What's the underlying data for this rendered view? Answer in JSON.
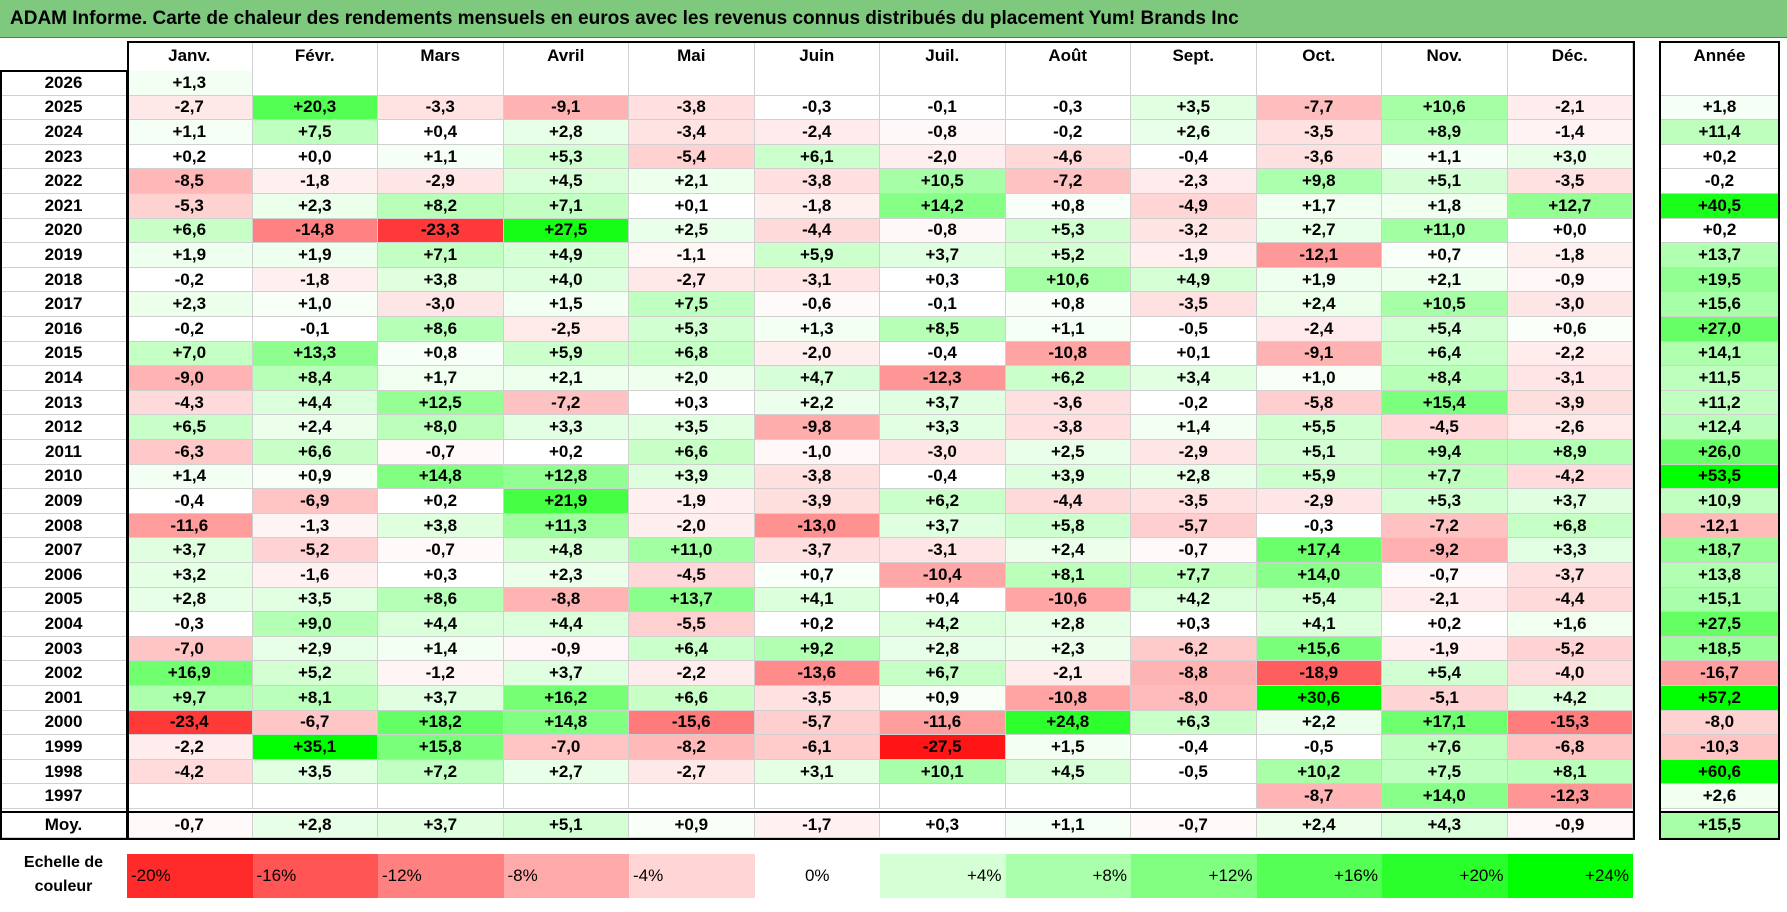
{
  "title": "ADAM Informe. Carte de chaleur des rendements mensuels en euros avec les revenus connus distribués du placement Yum! Brands Inc",
  "colors": {
    "neg_max": "#ff0000",
    "pos_max": "#00ff00",
    "neutral": "#ffffff",
    "title_bg": "#7fc97f"
  },
  "chart_data": {
    "type": "heatmap",
    "title": "ADAM Informe. Carte de chaleur des rendements mensuels en euros avec les revenus connus distribués du placement Yum! Brands Inc",
    "months": [
      "Janv.",
      "Févr.",
      "Mars",
      "Avril",
      "Mai",
      "Juin",
      "Juil.",
      "Août",
      "Sept.",
      "Oct.",
      "Nov.",
      "Déc."
    ],
    "year_header": "Année",
    "rows": [
      {
        "year": "2026",
        "values": [
          "+1,3",
          "",
          "",
          "",
          "",
          "",
          "",
          "",
          "",
          "",
          "",
          ""
        ],
        "annual": ""
      },
      {
        "year": "2025",
        "values": [
          "-2,7",
          "+20,3",
          "-3,3",
          "-9,1",
          "-3,8",
          "-0,3",
          "-0,1",
          "-0,3",
          "+3,5",
          "-7,7",
          "+10,6",
          "-2,1"
        ],
        "annual": "+1,8"
      },
      {
        "year": "2024",
        "values": [
          "+1,1",
          "+7,5",
          "+0,4",
          "+2,8",
          "-3,4",
          "-2,4",
          "-0,8",
          "-0,2",
          "+2,6",
          "-3,5",
          "+8,9",
          "-1,4"
        ],
        "annual": "+11,4"
      },
      {
        "year": "2023",
        "values": [
          "+0,2",
          "+0,0",
          "+1,1",
          "+5,3",
          "-5,4",
          "+6,1",
          "-2,0",
          "-4,6",
          "-0,4",
          "-3,6",
          "+1,1",
          "+3,0"
        ],
        "annual": "+0,2"
      },
      {
        "year": "2022",
        "values": [
          "-8,5",
          "-1,8",
          "-2,9",
          "+4,5",
          "+2,1",
          "-3,8",
          "+10,5",
          "-7,2",
          "-2,3",
          "+9,8",
          "+5,1",
          "-3,5"
        ],
        "annual": "-0,2"
      },
      {
        "year": "2021",
        "values": [
          "-5,3",
          "+2,3",
          "+8,2",
          "+7,1",
          "+0,1",
          "-1,8",
          "+14,2",
          "+0,8",
          "-4,9",
          "+1,7",
          "+1,8",
          "+12,7"
        ],
        "annual": "+40,5"
      },
      {
        "year": "2020",
        "values": [
          "+6,6",
          "-14,8",
          "-23,3",
          "+27,5",
          "+2,5",
          "-4,4",
          "-0,8",
          "+5,3",
          "-3,2",
          "+2,7",
          "+11,0",
          "+0,0"
        ],
        "annual": "+0,2"
      },
      {
        "year": "2019",
        "values": [
          "+1,9",
          "+1,9",
          "+7,1",
          "+4,9",
          "-1,1",
          "+5,9",
          "+3,7",
          "+5,2",
          "-1,9",
          "-12,1",
          "+0,7",
          "-1,8"
        ],
        "annual": "+13,7"
      },
      {
        "year": "2018",
        "values": [
          "-0,2",
          "-1,8",
          "+3,8",
          "+4,0",
          "-2,7",
          "-3,1",
          "+0,3",
          "+10,6",
          "+4,9",
          "+1,9",
          "+2,1",
          "-0,9"
        ],
        "annual": "+19,5"
      },
      {
        "year": "2017",
        "values": [
          "+2,3",
          "+1,0",
          "-3,0",
          "+1,5",
          "+7,5",
          "-0,6",
          "-0,1",
          "+0,8",
          "-3,5",
          "+2,4",
          "+10,5",
          "-3,0"
        ],
        "annual": "+15,6"
      },
      {
        "year": "2016",
        "values": [
          "-0,2",
          "-0,1",
          "+8,6",
          "-2,5",
          "+5,3",
          "+1,3",
          "+8,5",
          "+1,1",
          "-0,5",
          "-2,4",
          "+5,4",
          "+0,6"
        ],
        "annual": "+27,0"
      },
      {
        "year": "2015",
        "values": [
          "+7,0",
          "+13,3",
          "+0,8",
          "+5,9",
          "+6,8",
          "-2,0",
          "-0,4",
          "-10,8",
          "+0,1",
          "-9,1",
          "+6,4",
          "-2,2"
        ],
        "annual": "+14,1"
      },
      {
        "year": "2014",
        "values": [
          "-9,0",
          "+8,4",
          "+1,7",
          "+2,1",
          "+2,0",
          "+4,7",
          "-12,3",
          "+6,2",
          "+3,4",
          "+1,0",
          "+8,4",
          "-3,1"
        ],
        "annual": "+11,5"
      },
      {
        "year": "2013",
        "values": [
          "-4,3",
          "+4,4",
          "+12,5",
          "-7,2",
          "+0,3",
          "+2,2",
          "+3,7",
          "-3,6",
          "-0,2",
          "-5,8",
          "+15,4",
          "-3,9"
        ],
        "annual": "+11,2"
      },
      {
        "year": "2012",
        "values": [
          "+6,5",
          "+2,4",
          "+8,0",
          "+3,3",
          "+3,5",
          "-9,8",
          "+3,3",
          "-3,8",
          "+1,4",
          "+5,5",
          "-4,5",
          "-2,6"
        ],
        "annual": "+12,4"
      },
      {
        "year": "2011",
        "values": [
          "-6,3",
          "+6,6",
          "-0,7",
          "+0,2",
          "+6,6",
          "-1,0",
          "-3,0",
          "+2,5",
          "-2,9",
          "+5,1",
          "+9,4",
          "+8,9"
        ],
        "annual": "+26,0"
      },
      {
        "year": "2010",
        "values": [
          "+1,4",
          "+0,9",
          "+14,8",
          "+12,8",
          "+3,9",
          "-3,8",
          "-0,4",
          "+3,9",
          "+2,8",
          "+5,9",
          "+7,7",
          "-4,2"
        ],
        "annual": "+53,5"
      },
      {
        "year": "2009",
        "values": [
          "-0,4",
          "-6,9",
          "+0,2",
          "+21,9",
          "-1,9",
          "-3,9",
          "+6,2",
          "-4,4",
          "-3,5",
          "-2,9",
          "+5,3",
          "+3,7"
        ],
        "annual": "+10,9"
      },
      {
        "year": "2008",
        "values": [
          "-11,6",
          "-1,3",
          "+3,8",
          "+11,3",
          "-2,0",
          "-13,0",
          "+3,7",
          "+5,8",
          "-5,7",
          "-0,3",
          "-7,2",
          "+6,8"
        ],
        "annual": "-12,1"
      },
      {
        "year": "2007",
        "values": [
          "+3,7",
          "-5,2",
          "-0,7",
          "+4,8",
          "+11,0",
          "-3,7",
          "-3,1",
          "+2,4",
          "-0,7",
          "+17,4",
          "-9,2",
          "+3,3"
        ],
        "annual": "+18,7"
      },
      {
        "year": "2006",
        "values": [
          "+3,2",
          "-1,6",
          "+0,3",
          "+2,3",
          "-4,5",
          "+0,7",
          "-10,4",
          "+8,1",
          "+7,7",
          "+14,0",
          "-0,7",
          "-3,7"
        ],
        "annual": "+13,8"
      },
      {
        "year": "2005",
        "values": [
          "+2,8",
          "+3,5",
          "+8,6",
          "-8,8",
          "+13,7",
          "+4,1",
          "+0,4",
          "-10,6",
          "+4,2",
          "+5,4",
          "-2,1",
          "-4,4"
        ],
        "annual": "+15,1"
      },
      {
        "year": "2004",
        "values": [
          "-0,3",
          "+9,0",
          "+4,4",
          "+4,4",
          "-5,5",
          "+0,2",
          "+4,2",
          "+2,8",
          "+0,3",
          "+4,1",
          "+0,2",
          "+1,6"
        ],
        "annual": "+27,5"
      },
      {
        "year": "2003",
        "values": [
          "-7,0",
          "+2,9",
          "+1,4",
          "-0,9",
          "+6,4",
          "+9,2",
          "+2,8",
          "+2,3",
          "-6,2",
          "+15,6",
          "-1,9",
          "-5,2"
        ],
        "annual": "+18,5"
      },
      {
        "year": "2002",
        "values": [
          "+16,9",
          "+5,2",
          "-1,2",
          "+3,7",
          "-2,2",
          "-13,6",
          "+6,7",
          "-2,1",
          "-8,8",
          "-18,9",
          "+5,4",
          "-4,0"
        ],
        "annual": "-16,7"
      },
      {
        "year": "2001",
        "values": [
          "+9,7",
          "+8,1",
          "+3,7",
          "+16,2",
          "+6,6",
          "-3,5",
          "+0,9",
          "-10,8",
          "-8,0",
          "+30,6",
          "-5,1",
          "+4,2"
        ],
        "annual": "+57,2"
      },
      {
        "year": "2000",
        "values": [
          "-23,4",
          "-6,7",
          "+18,2",
          "+14,8",
          "-15,6",
          "-5,7",
          "-11,6",
          "+24,8",
          "+6,3",
          "+2,2",
          "+17,1",
          "-15,3"
        ],
        "annual": "-8,0"
      },
      {
        "year": "1999",
        "values": [
          "-2,2",
          "+35,1",
          "+15,8",
          "-7,0",
          "-8,2",
          "-6,1",
          "-27,5",
          "+1,5",
          "-0,4",
          "-0,5",
          "+7,6",
          "-6,8"
        ],
        "annual": "-10,3"
      },
      {
        "year": "1998",
        "values": [
          "-4,2",
          "+3,5",
          "+7,2",
          "+2,7",
          "-2,7",
          "+3,1",
          "+10,1",
          "+4,5",
          "-0,5",
          "+10,2",
          "+7,5",
          "+8,1"
        ],
        "annual": "+60,6"
      },
      {
        "year": "1997",
        "values": [
          "",
          "",
          "",
          "",
          "",
          "",
          "",
          "",
          "",
          "-8,7",
          "+14,0",
          "-12,3"
        ],
        "annual": "+2,6"
      }
    ],
    "average": {
      "label": "Moy.",
      "values": [
        "-0,7",
        "+2,8",
        "+3,7",
        "+5,1",
        "+0,9",
        "-1,7",
        "+0,3",
        "+1,1",
        "-0,7",
        "+2,4",
        "+4,3",
        "-0,9"
      ],
      "annual": "+15,5"
    },
    "scale": {
      "label_line1": "Echelle de",
      "label_line2": "couleur",
      "stops": [
        "-20%",
        "-16%",
        "-12%",
        "-8%",
        "-4%",
        "0%",
        "+4%",
        "+8%",
        "+12%",
        "+16%",
        "+20%",
        "+24%"
      ],
      "stop_values": [
        -20,
        -16,
        -12,
        -8,
        -4,
        0,
        4,
        8,
        12,
        16,
        20,
        24
      ]
    }
  }
}
